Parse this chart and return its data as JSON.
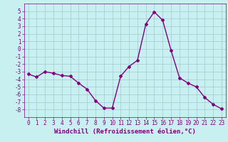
{
  "x": [
    0,
    1,
    2,
    3,
    4,
    5,
    6,
    7,
    8,
    9,
    10,
    11,
    12,
    13,
    14,
    15,
    16,
    17,
    18,
    19,
    20,
    21,
    22,
    23
  ],
  "y": [
    -3.3,
    -3.7,
    -3.0,
    -3.2,
    -3.5,
    -3.6,
    -4.5,
    -5.3,
    -6.8,
    -7.8,
    -7.8,
    -3.6,
    -2.3,
    -1.5,
    3.3,
    4.9,
    3.8,
    -0.2,
    -3.8,
    -4.5,
    -5.0,
    -6.4,
    -7.3,
    -7.9
  ],
  "line_color": "#800080",
  "marker": "D",
  "marker_size": 2.0,
  "bg_color": "#c8f0f0",
  "grid_color": "#a0c8d0",
  "xlabel": "Windchill (Refroidissement éolien,°C)",
  "xlim": [
    -0.5,
    23.5
  ],
  "ylim": [
    -9,
    6
  ],
  "yticks": [
    -8,
    -7,
    -6,
    -5,
    -4,
    -3,
    -2,
    -1,
    0,
    1,
    2,
    3,
    4,
    5
  ],
  "xticks": [
    0,
    1,
    2,
    3,
    4,
    5,
    6,
    7,
    8,
    9,
    10,
    11,
    12,
    13,
    14,
    15,
    16,
    17,
    18,
    19,
    20,
    21,
    22,
    23
  ],
  "tick_color": "#800080",
  "label_color": "#800080",
  "label_fontsize": 6.5,
  "tick_fontsize": 5.5,
  "line_width": 1.0
}
